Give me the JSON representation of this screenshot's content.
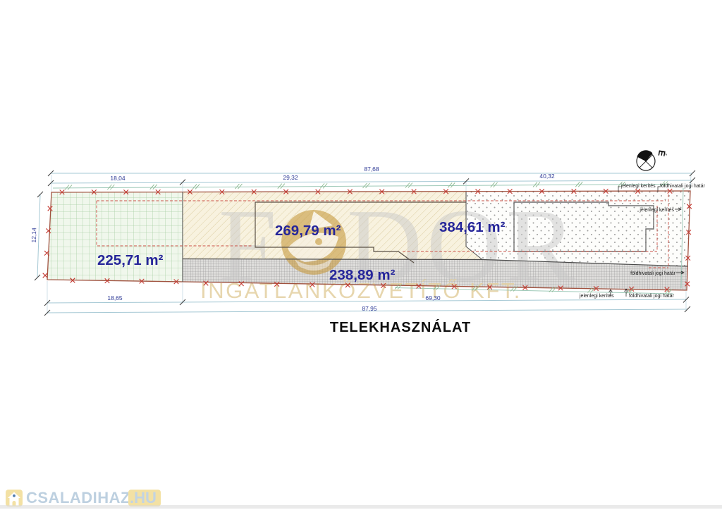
{
  "title": "TELEKHASZNÁLAT",
  "north": {
    "label": "É"
  },
  "areas": {
    "green": {
      "label": "225,71 m²"
    },
    "yellow": {
      "label": "269,79 m²"
    },
    "dotted": {
      "label": "384,61 m²"
    },
    "strip": {
      "label": "238,89 m²"
    }
  },
  "dimensions": {
    "top_total": "87,68",
    "top_seg_left": "18,04",
    "top_seg_mid": "29,32",
    "top_seg_right": "40,32",
    "left_side": "12,14",
    "bottom_seg_left": "18,65",
    "bottom_seg_mid": "69,30",
    "bottom_total": "87,95"
  },
  "annotations": {
    "current_fence": "jelenlegi kerítés",
    "legal_boundary": "földhivatali jogi határ"
  },
  "watermark": {
    "brand_f": "F",
    "brand_dor": "DOR",
    "subtitle": "INGATLANKÖZVETÍTŐ KFT."
  },
  "logo": {
    "name": "CSALADIHAZAK",
    "tld": ".HU"
  },
  "colors": {
    "area_label": "#26269a",
    "dimension": "#2e3a96",
    "boundary": "#a0523f",
    "fence_mark": "#c43b33",
    "watermark_gold": "#c79a3e"
  }
}
